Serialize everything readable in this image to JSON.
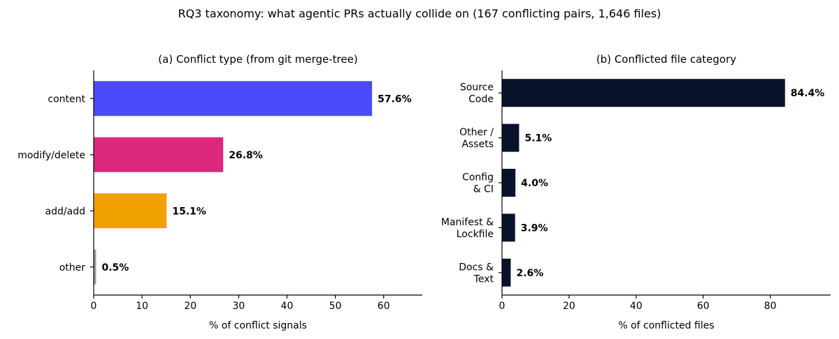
{
  "figure": {
    "title": "RQ3 taxonomy: what agentic PRs actually collide on (167 conflicting pairs, 1,646 files)"
  },
  "chart_data": [
    {
      "type": "bar",
      "orientation": "horizontal",
      "title": "(a) Conflict type (from git merge-tree)",
      "xlabel": "% of conflict signals",
      "ylabel": "",
      "xlim": [
        0,
        68
      ],
      "xticks": [
        "0",
        "10",
        "20",
        "30",
        "40",
        "50",
        "60"
      ],
      "xtick_values": [
        0,
        10,
        20,
        30,
        40,
        50,
        60
      ],
      "categories": [
        [
          "content"
        ],
        [
          "modify/delete"
        ],
        [
          "add/add"
        ],
        [
          "other"
        ]
      ],
      "values": [
        57.6,
        26.8,
        15.1,
        0.5
      ],
      "value_labels": [
        "57.6%",
        "26.8%",
        "15.1%",
        "0.5%"
      ],
      "colors": [
        "#4b4bfa",
        "#de287e",
        "#f2a200",
        "#9e9e9e"
      ],
      "grid": false,
      "legend": "none"
    },
    {
      "type": "bar",
      "orientation": "horizontal",
      "title": "(b) Conflicted file category",
      "xlabel": "% of conflicted files",
      "ylabel": "",
      "xlim": [
        0,
        98
      ],
      "xticks": [
        "0",
        "20",
        "40",
        "60",
        "80"
      ],
      "xtick_values": [
        0,
        20,
        40,
        60,
        80
      ],
      "categories": [
        [
          "Source",
          "Code"
        ],
        [
          "Other /",
          "Assets"
        ],
        [
          "Config",
          "& CI"
        ],
        [
          "Manifest &",
          "Lockfile"
        ],
        [
          "Docs &",
          "Text"
        ]
      ],
      "values": [
        84.4,
        5.1,
        4.0,
        3.9,
        2.6
      ],
      "value_labels": [
        "84.4%",
        "5.1%",
        "4.0%",
        "3.9%",
        "2.6%"
      ],
      "colors": [
        "#08122b",
        "#08122b",
        "#08122b",
        "#08122b",
        "#08122b"
      ],
      "grid": false,
      "legend": "none"
    }
  ]
}
